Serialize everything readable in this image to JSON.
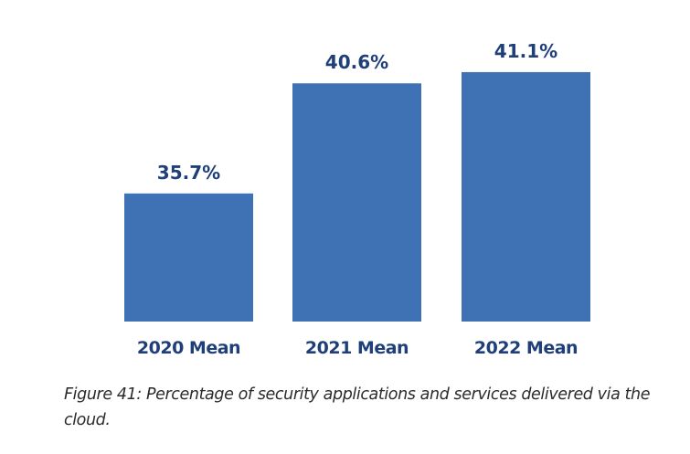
{
  "chart_data": {
    "type": "bar",
    "categories": [
      "2020 Mean",
      "2021 Mean",
      "2022 Mean"
    ],
    "values": [
      35.7,
      40.6,
      41.1
    ],
    "data_labels": [
      "35.7%",
      "40.6%",
      "41.1%"
    ],
    "title": "",
    "xlabel": "",
    "ylabel": "",
    "ylim": [
      30,
      42
    ],
    "grid": false,
    "axis_visible": false,
    "bar_color": "#3f72b5",
    "label_color": "#1f3f7a"
  },
  "caption": "Figure 41: Percentage of security applications and services delivered via the cloud."
}
